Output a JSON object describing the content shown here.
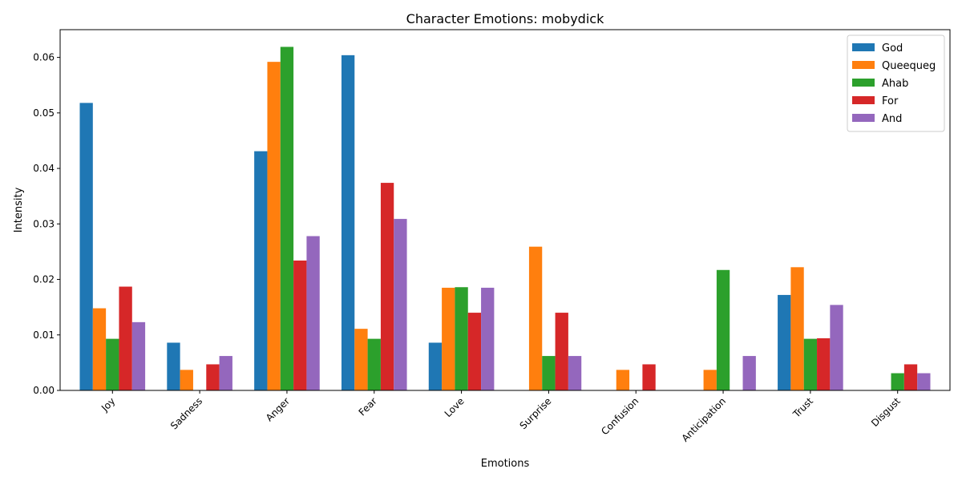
{
  "chart_data": {
    "type": "bar",
    "title": "Character Emotions: mobydick",
    "xlabel": "Emotions",
    "ylabel": "Intensity",
    "ylim": [
      0,
      0.065
    ],
    "yticks": [
      0.0,
      0.01,
      0.02,
      0.03,
      0.04,
      0.05,
      0.06
    ],
    "ytick_labels": [
      "0.00",
      "0.01",
      "0.02",
      "0.03",
      "0.04",
      "0.05",
      "0.06"
    ],
    "categories": [
      "Joy",
      "Sadness",
      "Anger",
      "Fear",
      "Love",
      "Surprise",
      "Confusion",
      "Anticipation",
      "Trust",
      "Disgust"
    ],
    "legend_position": "top-right",
    "grid": false,
    "series": [
      {
        "name": "God",
        "color": "#1f77b4",
        "values": [
          0.0518,
          0.0086,
          0.0431,
          0.0604,
          0.0086,
          0,
          0,
          0,
          0.0172,
          0
        ]
      },
      {
        "name": "Queequeg",
        "color": "#ff7f0e",
        "values": [
          0.0148,
          0.0037,
          0.0592,
          0.0111,
          0.0185,
          0.0259,
          0.0037,
          0.0037,
          0.0222,
          0
        ]
      },
      {
        "name": "Ahab",
        "color": "#2ca02c",
        "values": [
          0.0093,
          0,
          0.0619,
          0.0093,
          0.0186,
          0.0062,
          0,
          0.0217,
          0.0093,
          0.0031
        ]
      },
      {
        "name": "For",
        "color": "#d62728",
        "values": [
          0.0187,
          0.0047,
          0.0234,
          0.0374,
          0.014,
          0.014,
          0.0047,
          0,
          0.0094,
          0.0047
        ]
      },
      {
        "name": "And",
        "color": "#9467bd",
        "values": [
          0.0123,
          0.0062,
          0.0278,
          0.0309,
          0.0185,
          0.0062,
          0,
          0.0062,
          0.0154,
          0.0031
        ]
      }
    ]
  }
}
